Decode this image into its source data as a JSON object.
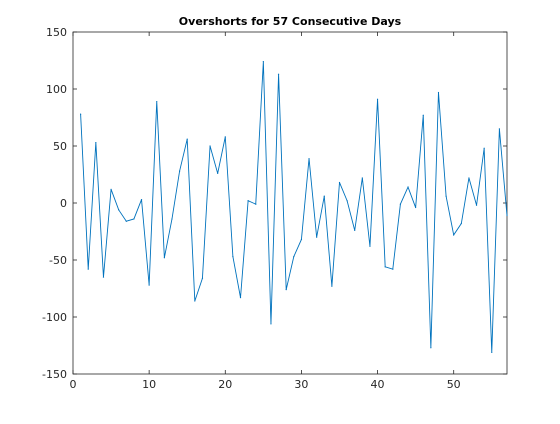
{
  "chart_data": {
    "type": "line",
    "title": "Overshorts for 57 Consecutive Days",
    "xlabel": "",
    "ylabel": "",
    "xlim": [
      0,
      57
    ],
    "ylim": [
      -150,
      150
    ],
    "xticks": [
      0,
      10,
      20,
      30,
      40,
      50
    ],
    "yticks": [
      -150,
      -100,
      -50,
      0,
      50,
      100,
      150
    ],
    "grid": false,
    "box": true,
    "series": [
      {
        "color": "#0072bd",
        "x": [
          1,
          2,
          3,
          4,
          5,
          6,
          7,
          8,
          9,
          10,
          11,
          12,
          13,
          14,
          15,
          16,
          17,
          18,
          19,
          20,
          21,
          22,
          23,
          24,
          25,
          26,
          27,
          28,
          29,
          30,
          31,
          32,
          33,
          34,
          35,
          36,
          37,
          38,
          39,
          40,
          41,
          42,
          43,
          44,
          45,
          46,
          47,
          48,
          49,
          50,
          51,
          52,
          53,
          54,
          55,
          56,
          57
        ],
        "values": [
          78,
          -58,
          53,
          -65,
          12,
          -6,
          -16,
          -14,
          3,
          -72,
          89,
          -48,
          -14,
          28,
          56,
          -86,
          -66,
          50,
          26,
          58,
          -47,
          -83,
          2,
          -1,
          124,
          -106,
          113,
          -76,
          -47,
          -32,
          39,
          -30,
          6,
          -73,
          18,
          2,
          -24,
          22,
          -38,
          91,
          -56,
          -58,
          -1,
          14,
          -4,
          77,
          -127,
          97,
          6,
          -28,
          -18,
          22,
          -2,
          48,
          -131,
          65,
          -11
        ]
      }
    ]
  }
}
